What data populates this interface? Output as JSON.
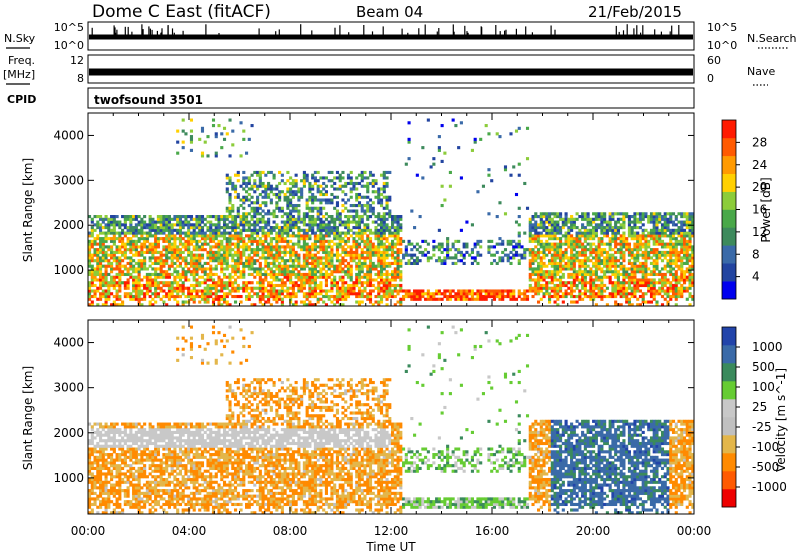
{
  "header": {
    "station": "Dome C East (fitACF)",
    "beam": "Beam 04",
    "date": "21/Feb/2015"
  },
  "panels": {
    "nsky_label": "N.Sky",
    "nsky_top": "10^5",
    "nsky_bottom": "10^0",
    "nsearch_label": "N.Search",
    "freq_label": "Freq.",
    "freq_unit": "[MHz]",
    "freq_top": "12",
    "freq_bottom": "8",
    "nave_label": "Nave",
    "nave_top": "60",
    "nave_bottom": "0",
    "cpid_label": "CPID",
    "cpid_value": "twofsound 3501"
  },
  "colors": {
    "power_scale": [
      "#0000ee",
      "#2244a0",
      "#3a6aa8",
      "#3d8a5c",
      "#49a849",
      "#8ccc3a",
      "#ffd000",
      "#ff9a00",
      "#ff5a00",
      "#ff1a00"
    ],
    "velocity_scale": [
      "#ee0000",
      "#ff5a00",
      "#ff8a00",
      "#e3b64a",
      "#c0c0c0",
      "#c8c8c8",
      "#66cc33",
      "#3a8a5c",
      "#3a6aa8",
      "#2244aa"
    ]
  },
  "chart_data": [
    {
      "type": "heatmap",
      "name": "power",
      "ylabel": "Slant Range [km]",
      "yticks": [
        "1000",
        "2000",
        "3000",
        "4000"
      ],
      "ylim": [
        200,
        4500
      ],
      "colorbar_label": "Power [dB]",
      "colorbar_ticks": [
        "4",
        "8",
        "12",
        "16",
        "20",
        "24",
        "28"
      ]
    },
    {
      "type": "heatmap",
      "name": "velocity",
      "ylabel": "Slant Range [km]",
      "yticks": [
        "1000",
        "2000",
        "3000",
        "4000"
      ],
      "ylim": [
        200,
        4500
      ],
      "colorbar_label": "Velocity [m s^-1]",
      "colorbar_ticks": [
        "-1000",
        "-500",
        "-100",
        "-25",
        "25",
        "100",
        "500",
        "1000"
      ]
    }
  ],
  "xaxis": {
    "label": "Time UT",
    "ticks": [
      "00:00",
      "04:00",
      "08:00",
      "12:00",
      "16:00",
      "20:00",
      "00:00"
    ]
  }
}
